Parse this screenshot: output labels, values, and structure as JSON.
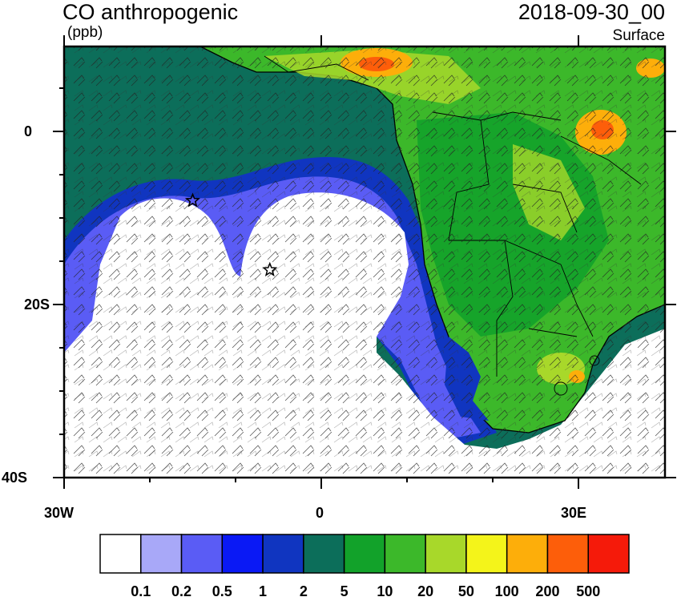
{
  "header": {
    "title": "CO anthropogenic",
    "units": "(ppb)",
    "datetime": "2018-09-30_00",
    "level": "Surface"
  },
  "axes": {
    "lat_labels": [
      "0",
      "20S",
      "40S"
    ],
    "lon_labels": [
      "30W",
      "0",
      "30E"
    ]
  },
  "colorbar": {
    "labels": [
      "0.1",
      "0.2",
      "0.5",
      "1",
      "2",
      "5",
      "10",
      "20",
      "50",
      "100",
      "200",
      "500"
    ],
    "colors": [
      "#ffffff",
      "#a8a8f8",
      "#5a5cf5",
      "#0a19f5",
      "#1035c0",
      "#0c6e5a",
      "#12a22a",
      "#3cb82a",
      "#a8d82a",
      "#f4f41a",
      "#fdae0a",
      "#fd5e0a",
      "#f51a0a"
    ]
  },
  "markers": [
    {
      "name": "star-1",
      "lon": -15,
      "lat": -8
    },
    {
      "name": "star-2",
      "lon": -6,
      "lat": -16
    }
  ]
}
